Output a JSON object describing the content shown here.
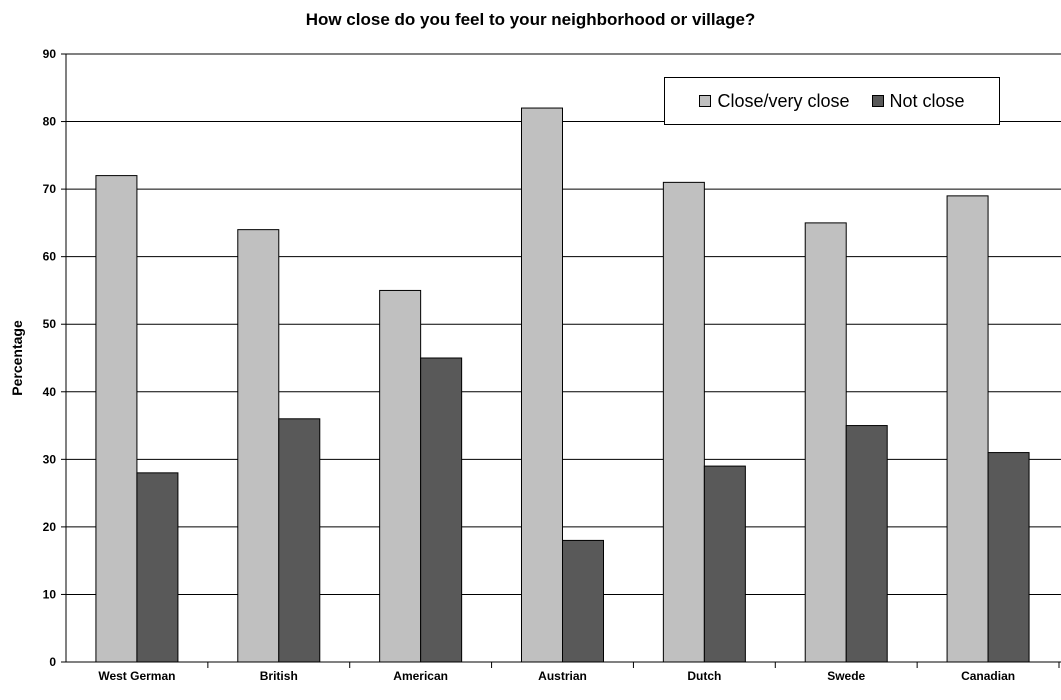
{
  "chart_data": {
    "type": "bar",
    "title": "How close do you feel to your neighborhood or village?",
    "ylabel": "Percentage",
    "xlabel": "",
    "ylim": [
      0,
      90
    ],
    "yticks": [
      0,
      10,
      20,
      30,
      40,
      50,
      60,
      70,
      80,
      90
    ],
    "grid": true,
    "legend_position": "top-right",
    "categories": [
      "West German",
      "British",
      "American",
      "Austrian",
      "Dutch",
      "Swede",
      "Canadian"
    ],
    "series": [
      {
        "name": "Close/very close",
        "color": "#c0c0c0",
        "values": [
          72,
          64,
          55,
          82,
          71,
          65,
          69
        ]
      },
      {
        "name": "Not close",
        "color": "#595959",
        "values": [
          28,
          36,
          45,
          18,
          29,
          35,
          31
        ]
      }
    ]
  }
}
